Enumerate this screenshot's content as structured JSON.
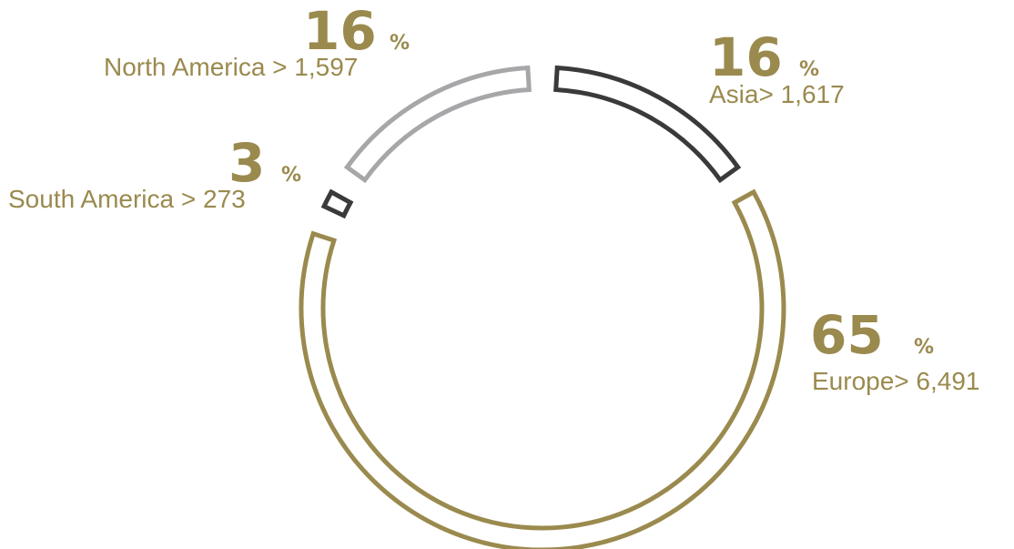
{
  "colors": {
    "text": "#9a8a4e",
    "europe": "#9a8a4e",
    "asia": "#3a3a3a",
    "north_america": "#a7a7aa",
    "south_america": "#3a3a3a",
    "background": "#ffffff"
  },
  "chart_data": {
    "type": "donut",
    "title": "",
    "segments": [
      {
        "name": "Asia",
        "percent": 16,
        "percent_text": "16",
        "sign": "%",
        "label": "Asia> 1,617",
        "value": 1617,
        "color": "#3a3a3a"
      },
      {
        "name": "Europe",
        "percent": 65,
        "percent_text": "65",
        "sign": "%",
        "label": "Europe> 6,491",
        "value": 6491,
        "color": "#9a8a4e"
      },
      {
        "name": "South America",
        "percent": 3,
        "percent_text": "3",
        "sign": "%",
        "label": "South America > 273",
        "value": 273,
        "color": "#3a3a3a"
      },
      {
        "name": "North America",
        "percent": 16,
        "percent_text": "16",
        "sign": "%",
        "label": "North America > 1,597",
        "value": 1597,
        "color": "#a7a7aa"
      }
    ]
  }
}
